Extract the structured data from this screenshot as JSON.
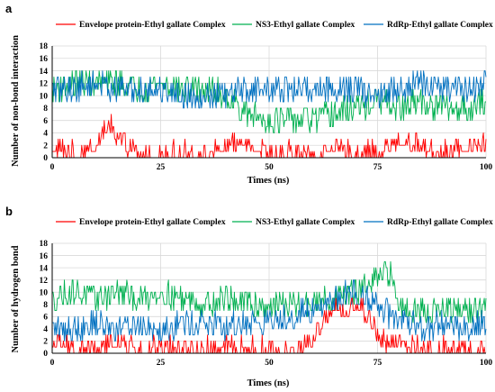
{
  "colors": {
    "envelope": "#ff0000",
    "ns3": "#00b050",
    "rdrp": "#0070c0",
    "grid": "#d9d9d9"
  },
  "legend": {
    "envelope": "Envelope protein-Ethyl gallate Complex",
    "ns3": "NS3-Ethyl gallate Complex",
    "rdrp": "RdRp-Ethyl gallate Complex"
  },
  "chart_data": [
    {
      "panel": "a",
      "type": "line",
      "xlabel": "Times (ns)",
      "ylabel": "Number of non-bond interaction",
      "xlim": [
        0,
        100
      ],
      "ylim": [
        0,
        18
      ],
      "xticks": [
        0,
        25,
        50,
        75,
        100
      ],
      "yticks": [
        0,
        2,
        4,
        6,
        8,
        10,
        12,
        14,
        16,
        18
      ],
      "grid": true,
      "legend_position": "top",
      "series": [
        {
          "name": "Envelope protein-Ethyl gallate Complex",
          "x": [
            0,
            5,
            10,
            13,
            15,
            20,
            25,
            30,
            35,
            40,
            45,
            50,
            55,
            60,
            65,
            70,
            75,
            80,
            85,
            90,
            95,
            100
          ],
          "values": [
            2,
            1,
            2,
            6,
            3,
            1,
            1,
            1,
            1,
            2,
            3,
            1,
            1,
            1,
            2,
            1,
            1,
            3,
            2,
            1,
            2,
            2
          ]
        },
        {
          "name": "NS3-Ethyl gallate Complex",
          "x": [
            0,
            5,
            10,
            15,
            20,
            25,
            30,
            35,
            40,
            45,
            50,
            55,
            60,
            65,
            70,
            75,
            80,
            85,
            90,
            95,
            100
          ],
          "values": [
            11,
            12,
            12,
            12,
            11,
            12,
            11,
            11,
            10,
            7,
            6,
            6,
            6,
            7,
            8,
            9,
            8,
            9,
            8,
            8,
            9
          ]
        },
        {
          "name": "RdRp-Ethyl gallate Complex",
          "x": [
            0,
            5,
            10,
            15,
            20,
            25,
            30,
            35,
            40,
            45,
            50,
            55,
            60,
            65,
            70,
            75,
            80,
            85,
            90,
            95,
            100
          ],
          "values": [
            11,
            11,
            12,
            11,
            11,
            11,
            10,
            10,
            10,
            11,
            11,
            11,
            11,
            11,
            11,
            10,
            11,
            12,
            11,
            11,
            12
          ]
        }
      ]
    },
    {
      "panel": "b",
      "type": "line",
      "xlabel": "Times (ns)",
      "ylabel": "Number of hydrogen bond",
      "xlim": [
        0,
        100
      ],
      "ylim": [
        0,
        18
      ],
      "xticks": [
        0,
        25,
        50,
        75,
        100
      ],
      "yticks": [
        0,
        2,
        4,
        6,
        8,
        10,
        12,
        14,
        16,
        18
      ],
      "grid": true,
      "legend_position": "top",
      "series": [
        {
          "name": "Envelope protein-Ethyl gallate Complex",
          "x": [
            0,
            5,
            10,
            15,
            20,
            25,
            30,
            35,
            40,
            45,
            50,
            55,
            60,
            62,
            65,
            68,
            70,
            72,
            74,
            76,
            80,
            85,
            90,
            95,
            100
          ],
          "values": [
            2,
            1,
            1,
            2,
            1,
            1,
            1,
            1,
            1,
            1,
            1,
            1,
            2,
            5,
            8,
            7,
            8,
            7,
            5,
            2,
            2,
            1,
            1,
            1,
            1
          ]
        },
        {
          "name": "NS3-Ethyl gallate Complex",
          "x": [
            0,
            5,
            10,
            15,
            20,
            25,
            30,
            35,
            40,
            45,
            50,
            55,
            60,
            65,
            70,
            75,
            78,
            80,
            85,
            90,
            95,
            100
          ],
          "values": [
            9,
            10,
            9,
            10,
            9,
            10,
            9,
            8,
            9,
            8,
            8,
            8,
            8,
            9,
            10,
            12,
            13,
            8,
            7,
            7,
            7,
            7
          ]
        },
        {
          "name": "RdRp-Ethyl gallate Complex",
          "x": [
            0,
            5,
            10,
            15,
            20,
            25,
            30,
            35,
            40,
            45,
            50,
            55,
            60,
            65,
            70,
            75,
            80,
            85,
            90,
            95,
            100
          ],
          "values": [
            4,
            4,
            5,
            4,
            5,
            4,
            5,
            5,
            4,
            5,
            5,
            6,
            7,
            9,
            10,
            8,
            5,
            4,
            5,
            4,
            5
          ]
        }
      ]
    }
  ]
}
